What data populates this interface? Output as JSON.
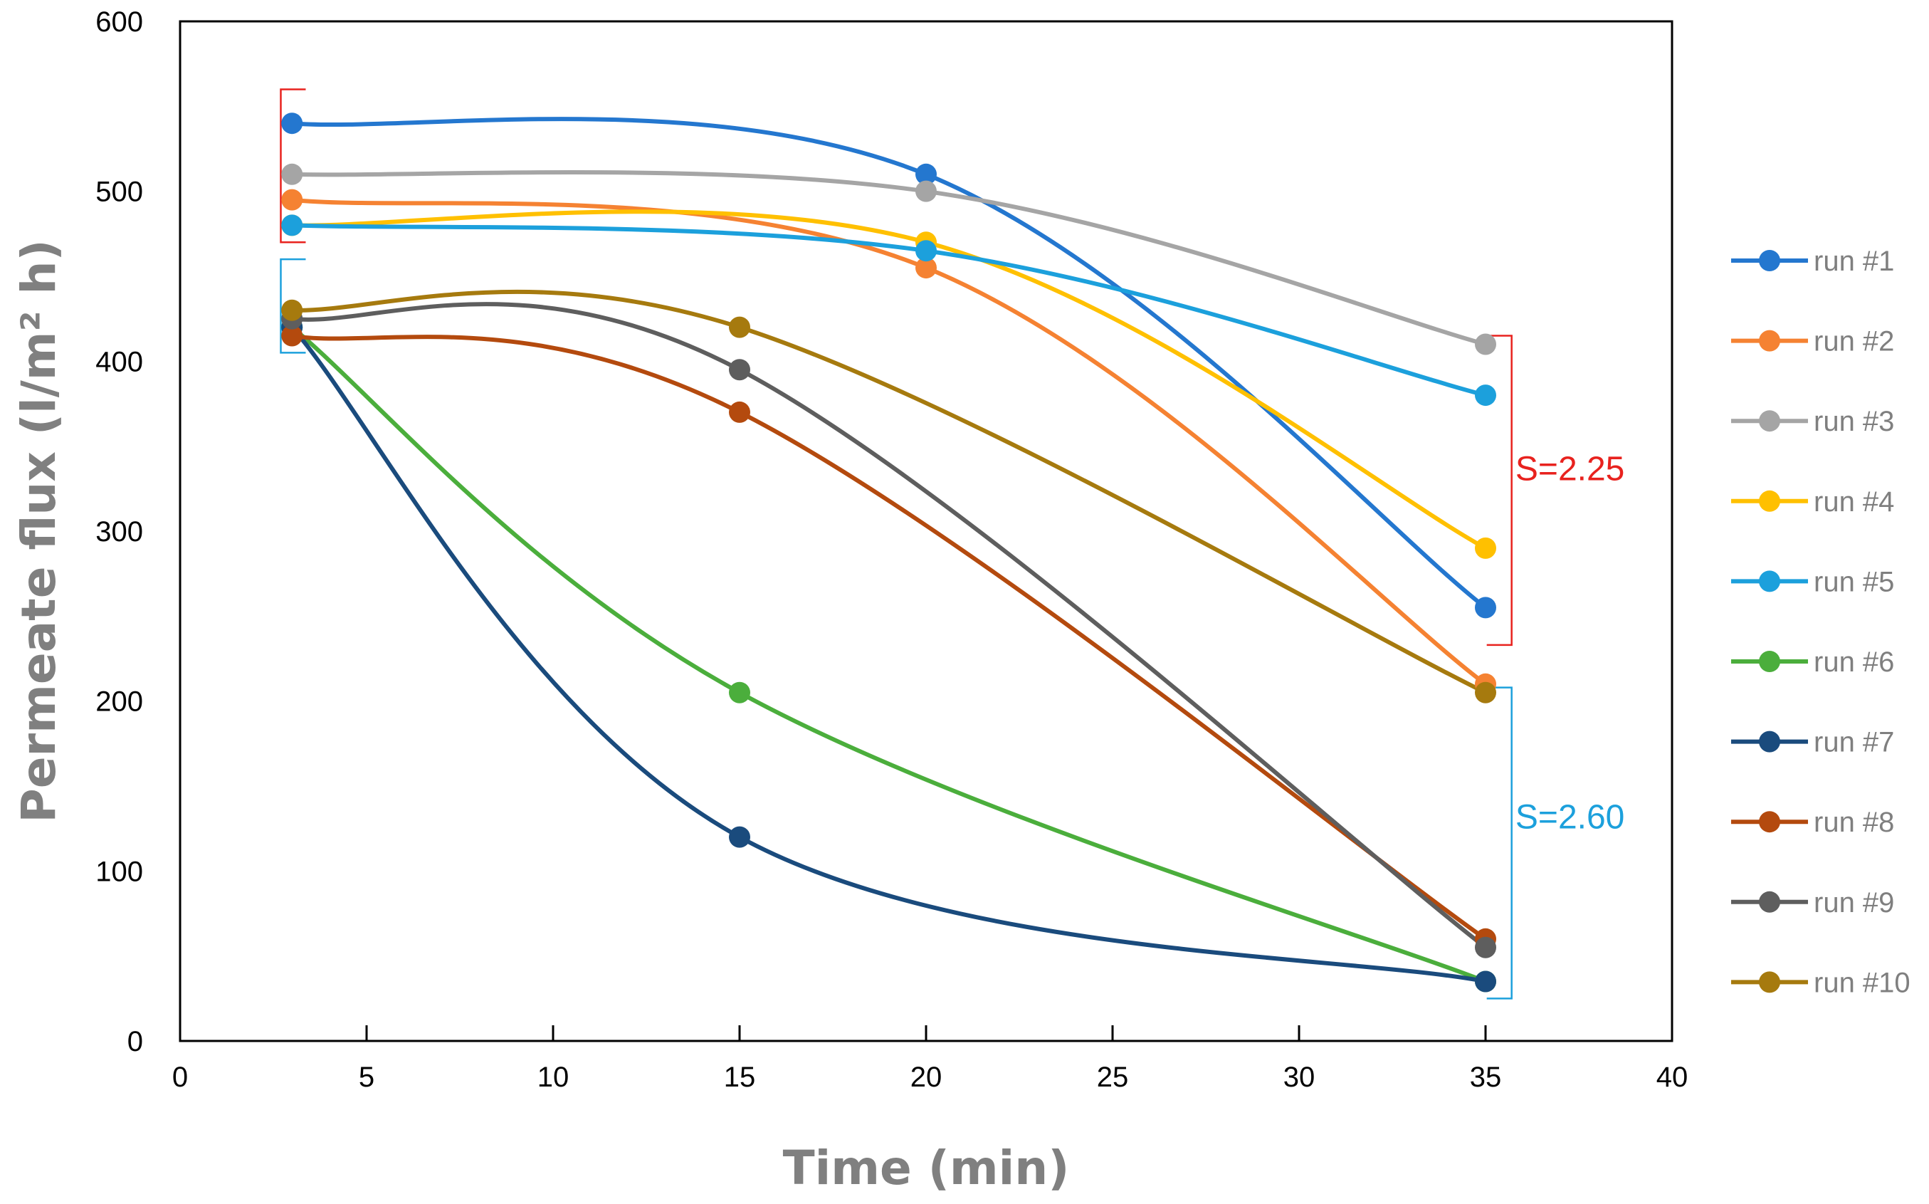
{
  "chart_data": {
    "type": "line",
    "title": "",
    "xlabel": "Time (min)",
    "ylabel": "Permeate flux (l/m² h)",
    "xlim": [
      0,
      40
    ],
    "ylim": [
      0,
      600
    ],
    "xticks": [
      "0",
      "5",
      "10",
      "15",
      "20",
      "25",
      "30",
      "35",
      "40"
    ],
    "yticks": [
      "0",
      "100",
      "200",
      "300",
      "400",
      "500",
      "600"
    ],
    "grid": false,
    "legend_position": "right",
    "series": [
      {
        "name": "run #1",
        "color": "#2477CF",
        "x": [
          3,
          20,
          35
        ],
        "y": [
          540,
          510,
          255
        ]
      },
      {
        "name": "run #2",
        "color": "#F58232",
        "x": [
          3,
          20,
          35
        ],
        "y": [
          495,
          455,
          210
        ]
      },
      {
        "name": "run #3",
        "color": "#A5A5A5",
        "x": [
          3,
          20,
          35
        ],
        "y": [
          510,
          500,
          410
        ]
      },
      {
        "name": "run #4",
        "color": "#FFC000",
        "x": [
          3,
          20,
          35
        ],
        "y": [
          480,
          470,
          290
        ]
      },
      {
        "name": "run #5",
        "color": "#1CA0DC",
        "x": [
          3,
          20,
          35
        ],
        "y": [
          480,
          465,
          380
        ]
      },
      {
        "name": "run #6",
        "color": "#4BAE3C",
        "x": [
          3,
          15,
          35
        ],
        "y": [
          420,
          205,
          35
        ]
      },
      {
        "name": "run #7",
        "color": "#1A4B7D",
        "x": [
          3,
          15,
          35
        ],
        "y": [
          420,
          120,
          35
        ]
      },
      {
        "name": "run #8",
        "color": "#B44A0E",
        "x": [
          3,
          15,
          35
        ],
        "y": [
          415,
          370,
          60
        ]
      },
      {
        "name": "run #9",
        "color": "#5E5E5E",
        "x": [
          3,
          15,
          35
        ],
        "y": [
          425,
          395,
          55
        ]
      },
      {
        "name": "run #10",
        "color": "#A67A0E",
        "x": [
          3,
          15,
          35
        ],
        "y": [
          430,
          420,
          205
        ]
      }
    ],
    "annotations": [
      {
        "text": "S=2.25",
        "color": "#E8221E",
        "x": 35.8,
        "y": 330
      },
      {
        "text": "S=2.60",
        "color": "#1CA0DC",
        "x": 35.8,
        "y": 125
      }
    ],
    "brackets": [
      {
        "color": "#E8221E",
        "x": 2.7,
        "y": [
          470,
          560
        ],
        "side": "left"
      },
      {
        "color": "#1CA0DC",
        "x": 2.7,
        "y": [
          405,
          460
        ],
        "side": "left"
      },
      {
        "color": "#E8221E",
        "x": 35.7,
        "y": [
          233,
          415
        ],
        "side": "right"
      },
      {
        "color": "#1CA0DC",
        "x": 35.7,
        "y": [
          25,
          208
        ],
        "side": "right"
      }
    ]
  }
}
